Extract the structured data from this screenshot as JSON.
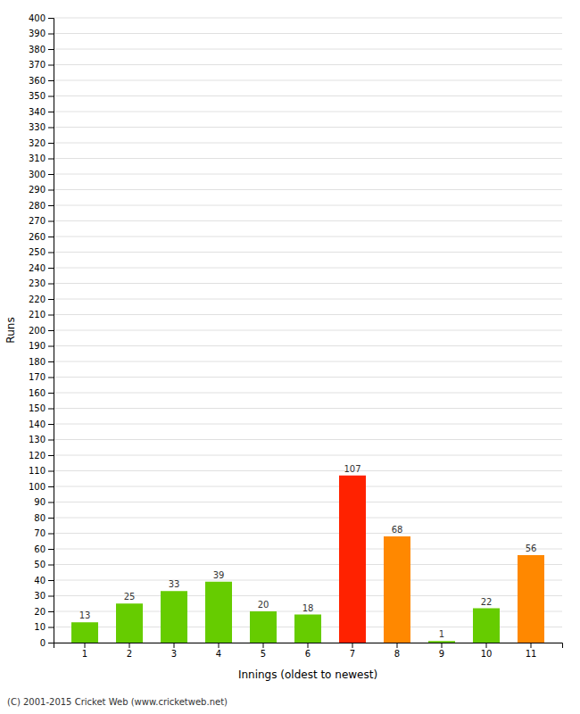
{
  "chart_data": {
    "type": "bar",
    "xlabel": "Innings (oldest to newest)",
    "ylabel": "Runs",
    "categories": [
      "1",
      "2",
      "3",
      "4",
      "5",
      "6",
      "7",
      "8",
      "9",
      "10",
      "11"
    ],
    "values": [
      13,
      25,
      33,
      39,
      20,
      18,
      107,
      68,
      1,
      22,
      56
    ],
    "colors": [
      "#66cc00",
      "#66cc00",
      "#66cc00",
      "#66cc00",
      "#66cc00",
      "#66cc00",
      "#ff2200",
      "#ff8800",
      "#66cc00",
      "#66cc00",
      "#ff8800"
    ],
    "ylim": [
      0,
      400
    ],
    "yticks": [
      0,
      10,
      20,
      30,
      40,
      50,
      60,
      70,
      80,
      90,
      100,
      110,
      120,
      130,
      140,
      150,
      160,
      170,
      180,
      190,
      200,
      210,
      220,
      230,
      240,
      250,
      260,
      270,
      280,
      290,
      300,
      310,
      320,
      330,
      340,
      350,
      360,
      370,
      380,
      390,
      400
    ],
    "grid": true,
    "data_labels": true,
    "annotations": [
      "(C) 2001-2015 Cricket Web (www.cricketweb.net)"
    ]
  }
}
